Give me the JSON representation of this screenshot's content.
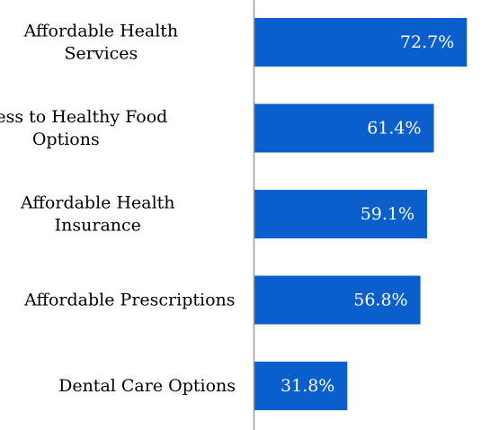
{
  "chart_data": {
    "type": "bar",
    "orientation": "horizontal",
    "categories": [
      [
        "Affordable Health",
        "Services"
      ],
      [
        "Access to Healthy Food",
        "Options"
      ],
      [
        "Affordable Health",
        "Insurance"
      ],
      [
        "Affordable Prescriptions"
      ],
      [
        "Dental Care Options"
      ]
    ],
    "values": [
      72.7,
      61.4,
      59.1,
      56.8,
      31.8
    ],
    "value_labels": [
      "72.7%",
      "61.4%",
      "59.1%",
      "56.8%",
      "31.8%"
    ],
    "xlim": [
      0,
      80
    ],
    "grid": false,
    "legend": "none",
    "colors": {
      "bar": "#0a5fcc",
      "axis": "#999999",
      "value_text": "#ffffff",
      "label_text": "#000000"
    }
  }
}
